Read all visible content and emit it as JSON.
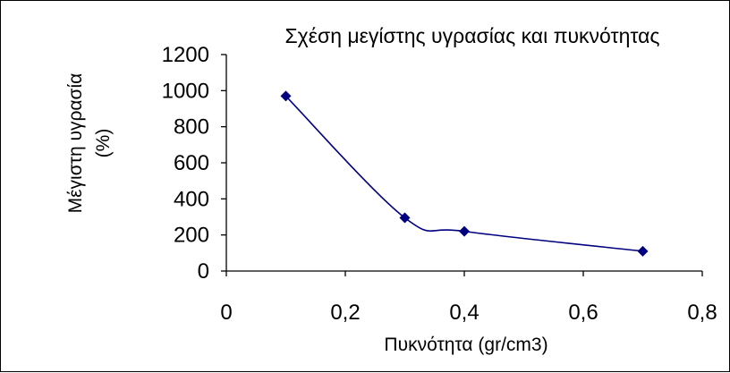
{
  "chart_data": {
    "type": "line",
    "title": "Σχέση μεγίστης υγρασίας και πυκνότητας",
    "xlabel": "Πυκνότητα (gr/cm3)",
    "ylabel_line1": "Μέγιστη υγρασία",
    "ylabel_line2": "(%)",
    "xlim": [
      0,
      0.8
    ],
    "ylim": [
      0,
      1200
    ],
    "xticks": [
      0,
      0.2,
      0.4,
      0.6,
      0.8
    ],
    "xtick_labels": [
      "0",
      "0,2",
      "0,4",
      "0,6",
      "0,8"
    ],
    "yticks": [
      0,
      200,
      400,
      600,
      800,
      1000,
      1200
    ],
    "ytick_labels": [
      "0",
      "200",
      "400",
      "600",
      "800",
      "1000",
      "1200"
    ],
    "grid": false,
    "legend": "none",
    "smoothed": true,
    "series": [
      {
        "x": [
          0.1,
          0.3,
          0.4,
          0.7
        ],
        "y": [
          970,
          295,
          220,
          110
        ],
        "color": "#000080"
      }
    ]
  }
}
